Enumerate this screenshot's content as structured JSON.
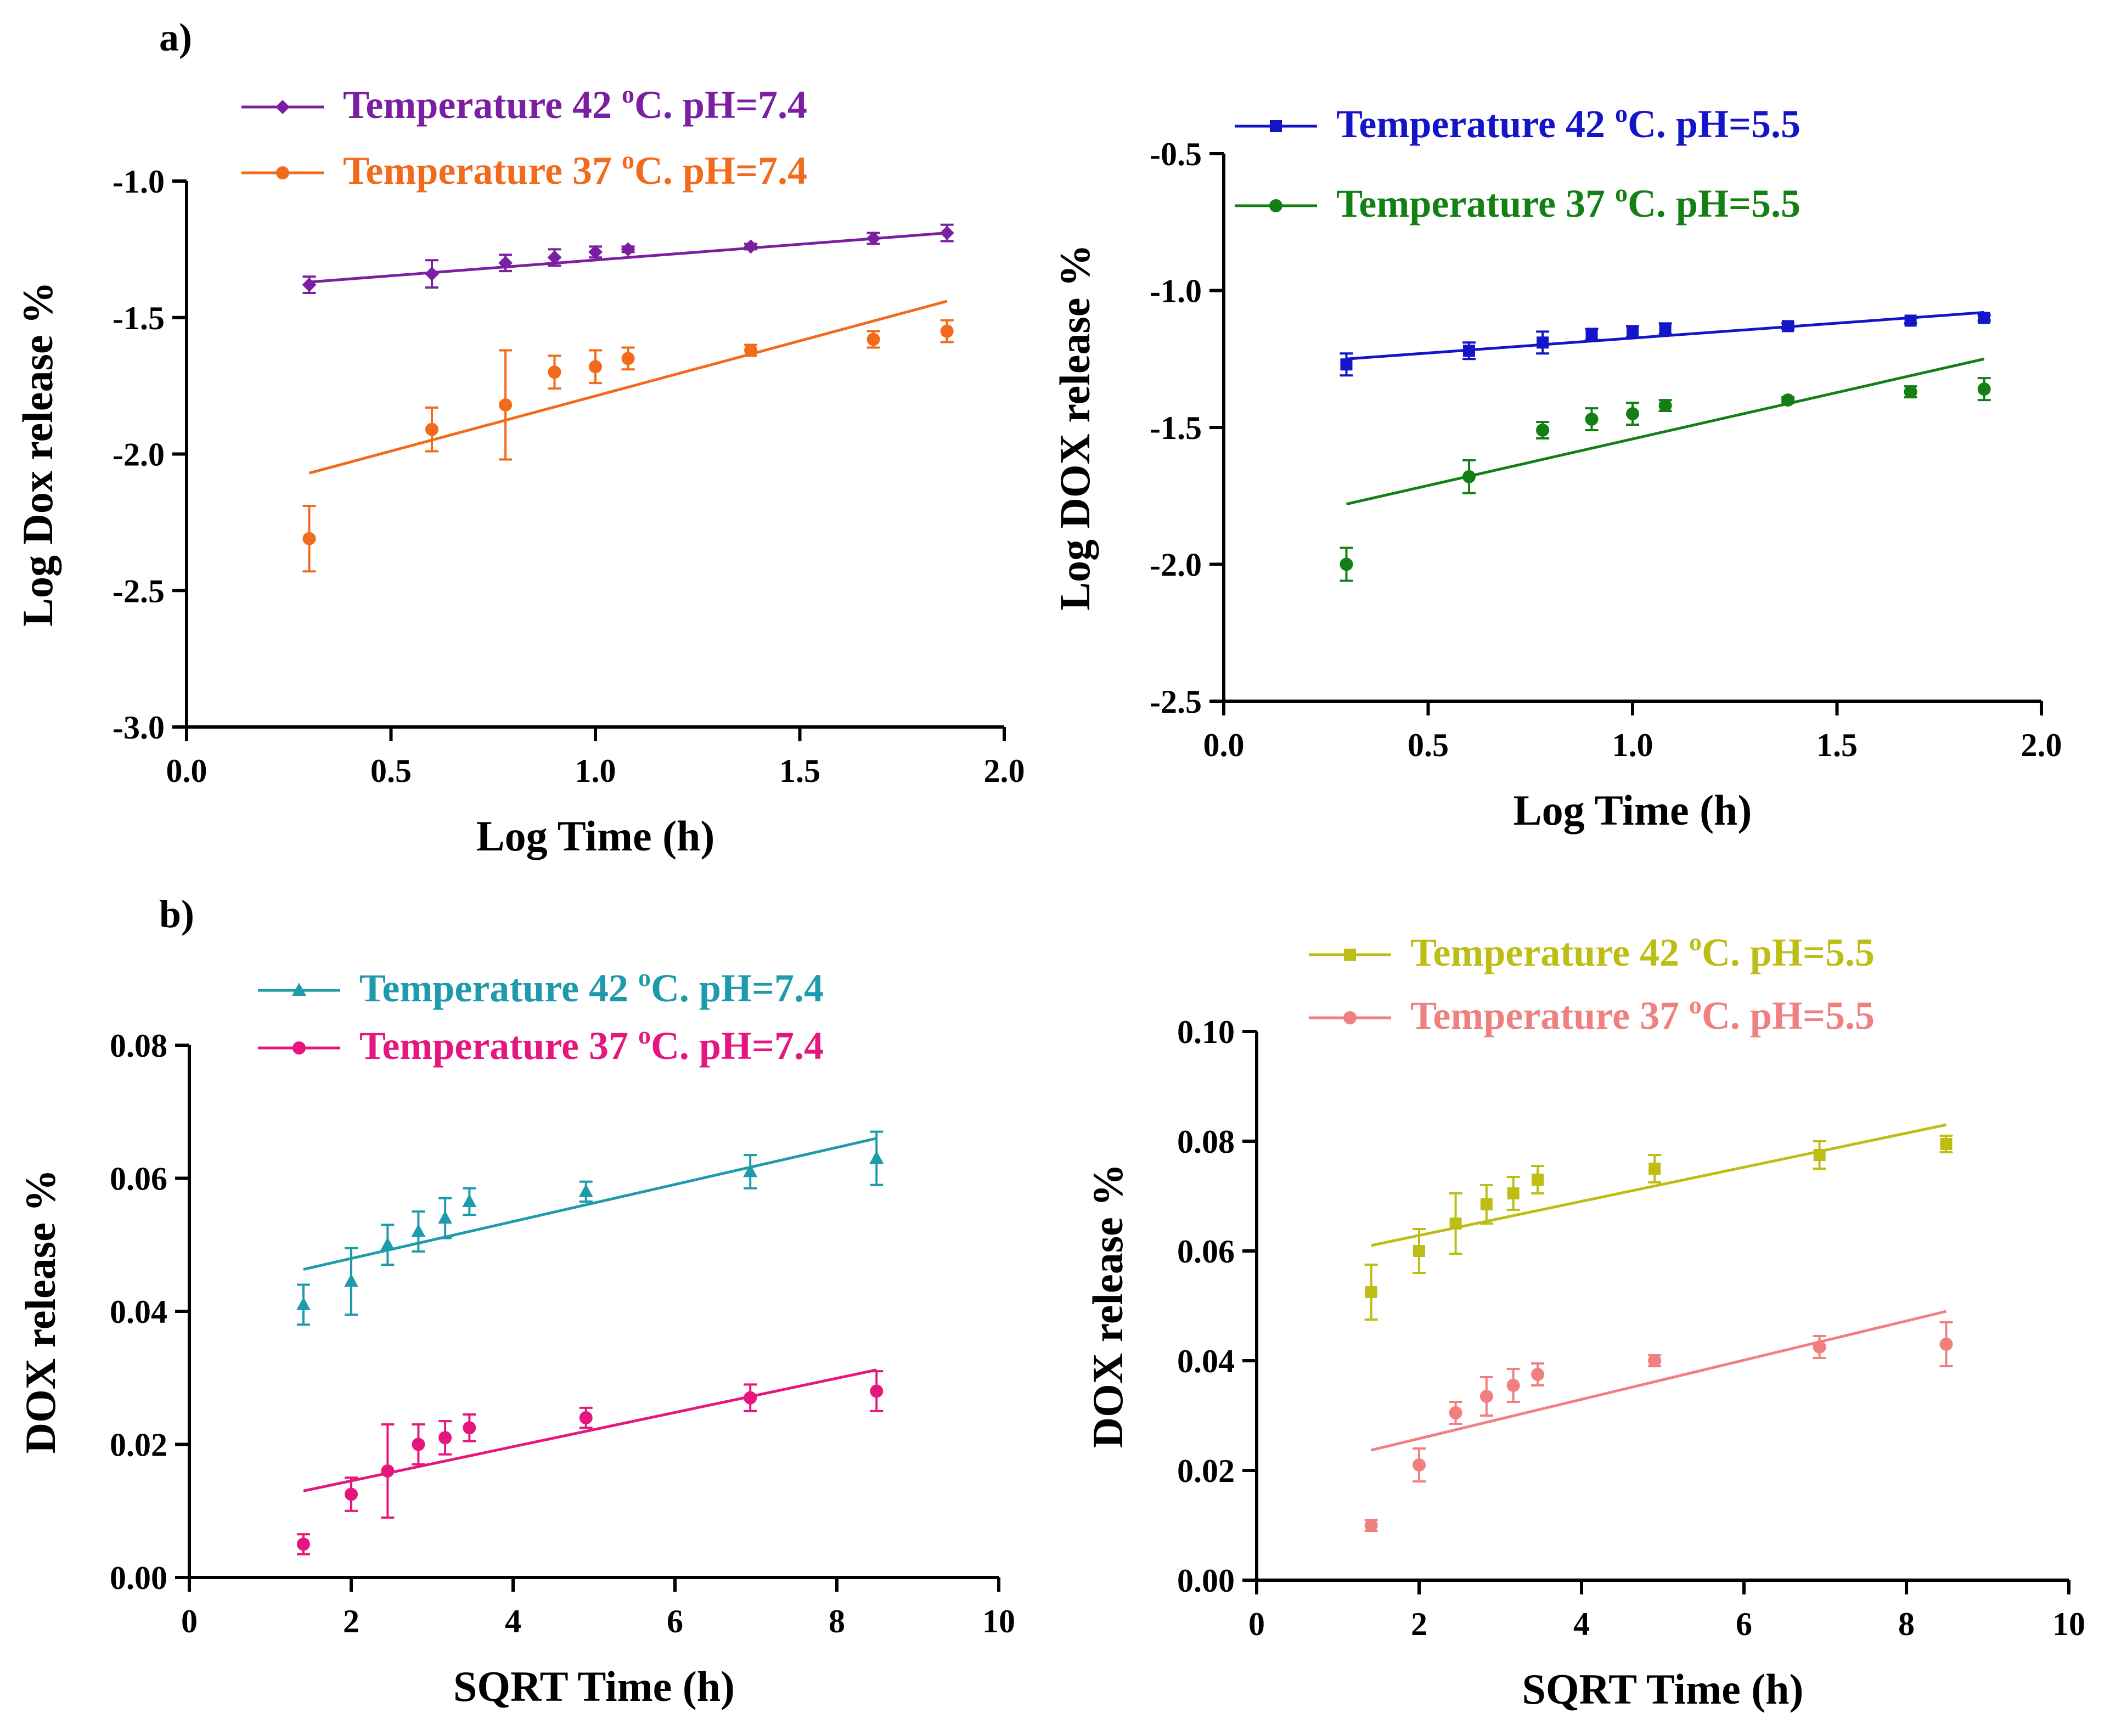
{
  "panel_labels": [
    "a)",
    "b)"
  ],
  "chart_data": [
    {
      "type": "scatter",
      "title": "",
      "xlabel": "Log Time (h)",
      "ylabel": "Log Dox release %",
      "xlim": [
        0.0,
        2.0
      ],
      "ylim": [
        -3.0,
        -1.0
      ],
      "xticks": [
        0.0,
        0.5,
        1.0,
        1.5,
        2.0
      ],
      "yticks": [
        -3.0,
        -2.5,
        -2.0,
        -1.5,
        -1.0
      ],
      "tick_decimals": 1,
      "legend_position": "top",
      "series": [
        {
          "name": "Temperature 42 ºC. pH=7.4",
          "label_main": "Temperature 42 ",
          "label_sup": "o",
          "label_tail": "C. pH=7.4",
          "color": "#7B1FA2",
          "marker": "diamond",
          "x": [
            0.3,
            0.6,
            0.78,
            0.9,
            1.0,
            1.08,
            1.38,
            1.68,
            1.86
          ],
          "y": [
            -1.38,
            -1.34,
            -1.3,
            -1.28,
            -1.26,
            -1.25,
            -1.24,
            -1.21,
            -1.19
          ],
          "err": [
            0.03,
            0.05,
            0.03,
            0.03,
            0.02,
            0.01,
            0.01,
            0.02,
            0.03
          ],
          "fit": [
            [
              0.3,
              -1.37
            ],
            [
              1.86,
              -1.19
            ]
          ]
        },
        {
          "name": "Temperature 37 ºC. pH=7.4",
          "label_main": "Temperature 37 ",
          "label_sup": "o",
          "label_tail": "C. pH=7.4",
          "color": "#F26A1B",
          "marker": "circle",
          "x": [
            0.3,
            0.6,
            0.78,
            0.9,
            1.0,
            1.08,
            1.38,
            1.68,
            1.86
          ],
          "y": [
            -2.31,
            -1.91,
            -1.82,
            -1.7,
            -1.68,
            -1.65,
            -1.62,
            -1.58,
            -1.55
          ],
          "err": [
            0.12,
            0.08,
            0.2,
            0.06,
            0.06,
            0.04,
            0.02,
            0.03,
            0.04
          ],
          "fit": [
            [
              0.3,
              -2.07
            ],
            [
              1.86,
              -1.44
            ]
          ]
        }
      ]
    },
    {
      "type": "scatter",
      "title": "",
      "xlabel": "Log Time (h)",
      "ylabel": "Log DOX release %",
      "xlim": [
        0.0,
        2.0
      ],
      "ylim": [
        -2.5,
        -0.5
      ],
      "xticks": [
        0.0,
        0.5,
        1.0,
        1.5,
        2.0
      ],
      "yticks": [
        -2.5,
        -2.0,
        -1.5,
        -1.0,
        -0.5
      ],
      "tick_decimals": 1,
      "legend_position": "top",
      "series": [
        {
          "name": "Temperature 42 ºC. pH=5.5",
          "label_main": "Temperature 42 ",
          "label_sup": "o",
          "label_tail": "C. pH=5.5",
          "color": "#1414C8",
          "marker": "square",
          "x": [
            0.3,
            0.6,
            0.78,
            0.9,
            1.0,
            1.08,
            1.38,
            1.68,
            1.86
          ],
          "y": [
            -1.27,
            -1.22,
            -1.19,
            -1.16,
            -1.15,
            -1.14,
            -1.13,
            -1.11,
            -1.1
          ],
          "err": [
            0.04,
            0.03,
            0.04,
            0.02,
            0.02,
            0.02,
            0.01,
            0.01,
            0.01
          ],
          "fit": [
            [
              0.3,
              -1.25
            ],
            [
              1.86,
              -1.08
            ]
          ]
        },
        {
          "name": "Temperature 37 ºC. pH=5.5",
          "label_main": "Temperature 37 ",
          "label_sup": "o",
          "label_tail": "C. pH=5.5",
          "color": "#148014",
          "marker": "circle",
          "x": [
            0.3,
            0.6,
            0.78,
            0.9,
            1.0,
            1.08,
            1.38,
            1.68,
            1.86
          ],
          "y": [
            -2.0,
            -1.68,
            -1.51,
            -1.47,
            -1.45,
            -1.42,
            -1.4,
            -1.37,
            -1.36
          ],
          "err": [
            0.06,
            0.06,
            0.03,
            0.04,
            0.04,
            0.02,
            0.01,
            0.02,
            0.04
          ],
          "fit": [
            [
              0.3,
              -1.78
            ],
            [
              1.86,
              -1.25
            ]
          ]
        }
      ]
    },
    {
      "type": "scatter",
      "title": "",
      "xlabel": "SQRT Time (h)",
      "ylabel": "DOX release %",
      "xlim": [
        0,
        10
      ],
      "ylim": [
        0.0,
        0.08
      ],
      "xticks": [
        0,
        2,
        4,
        6,
        8,
        10
      ],
      "yticks": [
        0.0,
        0.02,
        0.04,
        0.06,
        0.08
      ],
      "tick_decimals": 2,
      "x_tick_decimals": 0,
      "legend_position": "top",
      "series": [
        {
          "name": "Temperature 42 ºC. pH=7.4",
          "label_main": "Temperature 42 ",
          "label_sup": "o",
          "label_tail": "C. pH=7.4",
          "color": "#1E9AAD",
          "marker": "triangle",
          "x": [
            1.41,
            2.0,
            2.45,
            2.83,
            3.16,
            3.46,
            4.9,
            6.93,
            8.49
          ],
          "y": [
            0.041,
            0.0445,
            0.05,
            0.052,
            0.054,
            0.0565,
            0.058,
            0.061,
            0.063
          ],
          "err": [
            0.003,
            0.005,
            0.003,
            0.003,
            0.003,
            0.002,
            0.0015,
            0.0025,
            0.004
          ],
          "fit": [
            [
              1.41,
              0.0463
            ],
            [
              8.49,
              0.066
            ]
          ]
        },
        {
          "name": "Temperature 37 ºC. pH=7.4",
          "label_main": "Temperature 37 ",
          "label_sup": "o",
          "label_tail": "C. pH=7.4",
          "color": "#E5177F",
          "marker": "circle",
          "x": [
            1.41,
            2.0,
            2.45,
            2.83,
            3.16,
            3.46,
            4.9,
            6.93,
            8.49
          ],
          "y": [
            0.005,
            0.0125,
            0.016,
            0.02,
            0.021,
            0.0225,
            0.024,
            0.027,
            0.028
          ],
          "err": [
            0.0015,
            0.0025,
            0.007,
            0.003,
            0.0025,
            0.002,
            0.0015,
            0.002,
            0.003
          ],
          "fit": [
            [
              1.41,
              0.013
            ],
            [
              8.49,
              0.0312
            ]
          ]
        }
      ]
    },
    {
      "type": "scatter",
      "title": "",
      "xlabel": "SQRT Time (h)",
      "ylabel": "DOX release %",
      "xlim": [
        0,
        10
      ],
      "ylim": [
        0.0,
        0.1
      ],
      "xticks": [
        0,
        2,
        4,
        6,
        8,
        10
      ],
      "yticks": [
        0.0,
        0.02,
        0.04,
        0.06,
        0.08,
        0.1
      ],
      "tick_decimals": 2,
      "x_tick_decimals": 0,
      "legend_position": "top",
      "series": [
        {
          "name": "Temperature 42 ºC. pH=5.5",
          "label_main": "Temperature 42 ",
          "label_sup": "o",
          "label_tail": "C. pH=5.5",
          "color": "#BDBD14",
          "marker": "square",
          "x": [
            1.41,
            2.0,
            2.45,
            2.83,
            3.16,
            3.46,
            4.9,
            6.93,
            8.49
          ],
          "y": [
            0.0525,
            0.06,
            0.065,
            0.0685,
            0.0705,
            0.073,
            0.075,
            0.0775,
            0.0795
          ],
          "err": [
            0.005,
            0.004,
            0.0055,
            0.0035,
            0.003,
            0.0025,
            0.0025,
            0.0025,
            0.0015
          ],
          "fit": [
            [
              1.41,
              0.061
            ],
            [
              8.49,
              0.083
            ]
          ]
        },
        {
          "name": "Temperature 37 ºC. pH=5.5",
          "label_main": "Temperature 37 ",
          "label_sup": "o",
          "label_tail": "C. pH=5.5",
          "color": "#F08080",
          "marker": "circle",
          "x": [
            1.41,
            2.0,
            2.45,
            2.83,
            3.16,
            3.46,
            4.9,
            6.93,
            8.49
          ],
          "y": [
            0.01,
            0.021,
            0.0305,
            0.0335,
            0.0355,
            0.0375,
            0.04,
            0.0425,
            0.043
          ],
          "err": [
            0.001,
            0.003,
            0.002,
            0.0035,
            0.003,
            0.002,
            0.001,
            0.002,
            0.004
          ],
          "fit": [
            [
              1.41,
              0.0237
            ],
            [
              8.49,
              0.049
            ]
          ]
        }
      ]
    }
  ]
}
